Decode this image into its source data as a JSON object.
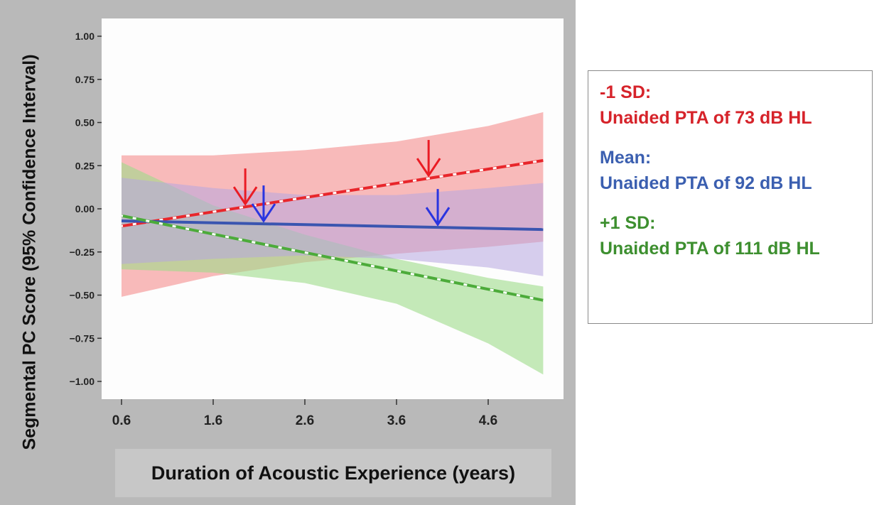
{
  "chart_data": {
    "type": "line",
    "title": "",
    "xlabel": "Duration of Acoustic Experience (years)",
    "ylabel": "Segmental PC Score (95% Confidence Interval)",
    "xlim": [
      0.4,
      5.4
    ],
    "ylim": [
      -1.1,
      1.08
    ],
    "x_ticks": [
      0.6,
      1.6,
      2.6,
      3.6,
      4.6
    ],
    "y_ticks": [
      1.0,
      0.75,
      0.5,
      0.25,
      0.0,
      -0.25,
      -0.5,
      -0.75,
      -1.0
    ],
    "x_tick_labels": [
      "0.6",
      "1.6",
      "2.6",
      "3.6",
      "4.6"
    ],
    "y_tick_labels": [
      "1.00",
      "0.75",
      "0.50",
      "0.25",
      "0.00",
      "−0.25",
      "−0.50",
      "−0.75",
      "−1.00"
    ],
    "grid": false,
    "legend_position": "right, outside plot",
    "series": [
      {
        "name": "-1 SD: Unaided PTA of 73 dB HL",
        "color": "#e8262b",
        "band_color": "#f5a3a3",
        "line_style": "dashed",
        "x": [
          0.6,
          5.2
        ],
        "y": [
          -0.1,
          0.28
        ],
        "ci_x": [
          0.6,
          1.6,
          2.6,
          3.6,
          4.6,
          5.2
        ],
        "ci_upper": [
          0.31,
          0.31,
          0.34,
          0.39,
          0.48,
          0.56
        ],
        "ci_lower": [
          -0.51,
          -0.39,
          -0.31,
          -0.26,
          -0.22,
          -0.19
        ],
        "arrow_x": [
          1.95,
          3.95
        ]
      },
      {
        "name": "Mean: Unaided PTA of 92 dB HL",
        "color": "#3a55b0",
        "band_color": "#b6a6e0",
        "line_style": "solid",
        "x": [
          0.6,
          5.2
        ],
        "y": [
          -0.07,
          -0.12
        ],
        "ci_x": [
          0.6,
          1.6,
          2.6,
          3.6,
          4.6,
          5.2
        ],
        "ci_upper": [
          0.18,
          0.12,
          0.08,
          0.08,
          0.12,
          0.15
        ],
        "ci_lower": [
          -0.32,
          -0.29,
          -0.27,
          -0.29,
          -0.34,
          -0.39
        ],
        "arrow_x": [
          2.15,
          4.05
        ]
      },
      {
        "name": "+1 SD: Unaided PTA of 111 dB HL",
        "color": "#4cab3a",
        "band_color": "#9fdc8a",
        "line_style": "dashed",
        "x": [
          0.6,
          5.2
        ],
        "y": [
          -0.04,
          -0.53
        ],
        "ci_x": [
          0.6,
          1.6,
          2.6,
          3.6,
          4.6,
          5.2
        ],
        "ci_upper": [
          0.27,
          0.02,
          -0.15,
          -0.29,
          -0.4,
          -0.45
        ],
        "ci_lower": [
          -0.35,
          -0.37,
          -0.43,
          -0.55,
          -0.78,
          -0.96
        ]
      }
    ]
  },
  "legend": {
    "groups": [
      {
        "line1": "-1 SD:",
        "line2": "Unaided PTA of 73 dB HL",
        "color": "#d6232a"
      },
      {
        "line1": "Mean:",
        "line2": "Unaided PTA of 92 dB HL",
        "color": "#3b5fb0"
      },
      {
        "line1": "+1 SD:",
        "line2": "Unaided PTA of 111 dB HL",
        "color": "#3d8f2f"
      }
    ]
  }
}
